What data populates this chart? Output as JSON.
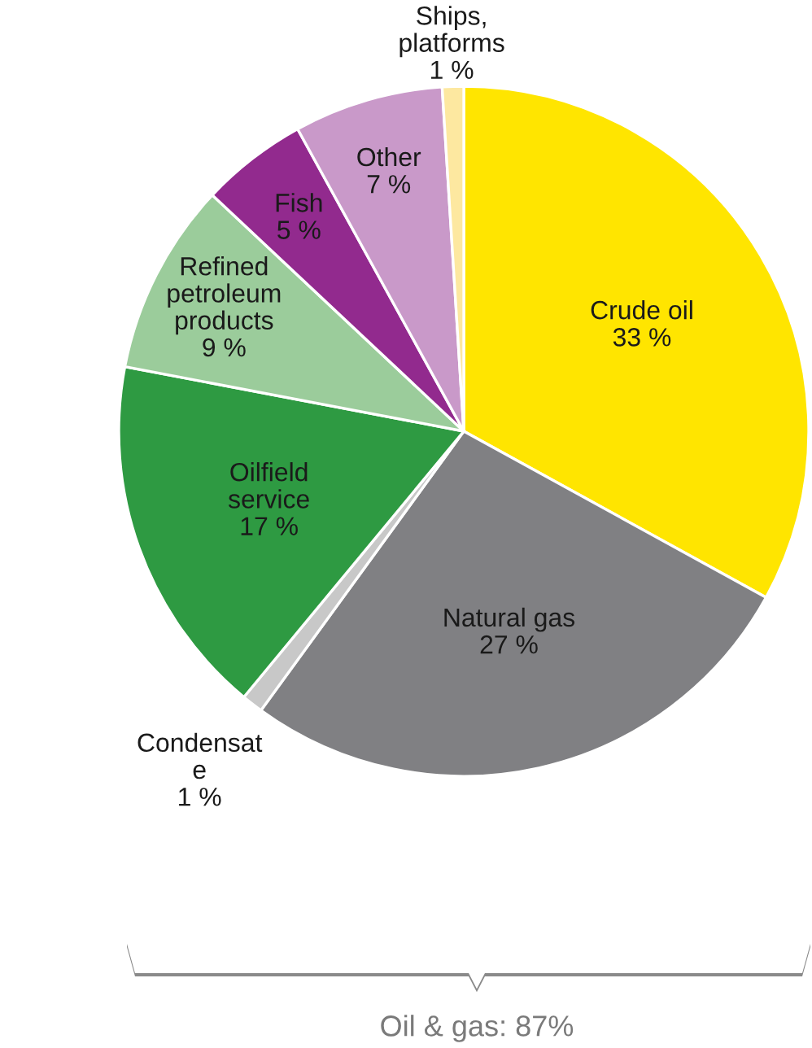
{
  "chart_data": {
    "type": "pie",
    "categories": [
      "Crude oil",
      "Natural gas",
      "Condensat\ne",
      "Oilfield\nservice",
      "Refined\npetroleum\nproducts",
      "Fish",
      "Other",
      "Ships,\nplatforms"
    ],
    "values": [
      33,
      27,
      1,
      17,
      9,
      5,
      7,
      1
    ],
    "value_labels": [
      "33 %",
      "27 %",
      "1 %",
      "17 %",
      "9 %",
      "5 %",
      "7 %",
      "1 %"
    ],
    "colors": [
      "#ffe500",
      "#808083",
      "#c8c8c8",
      "#2e9a42",
      "#9bcc9b",
      "#922a8e",
      "#c999c9",
      "#fde8a0"
    ],
    "annotations": [
      "Oil & gas: 87%"
    ],
    "legend": false
  }
}
